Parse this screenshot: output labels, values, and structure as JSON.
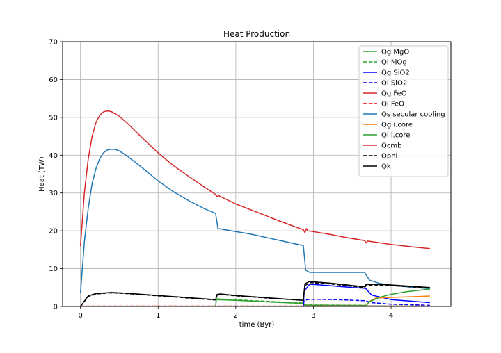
{
  "chart_data": {
    "type": "line",
    "title": "Heat Production",
    "xlabel": "time (Byr)",
    "ylabel": "Heat (TW)",
    "xlim": [
      -0.23,
      4.77
    ],
    "ylim": [
      0,
      70
    ],
    "x_ticks": [
      0,
      1,
      2,
      3,
      4
    ],
    "y_ticks": [
      0,
      10,
      20,
      30,
      40,
      50,
      60,
      70
    ],
    "x_tick_labels": [
      "0",
      "1",
      "2",
      "3",
      "4"
    ],
    "y_tick_labels": [
      "0",
      "10",
      "20",
      "30",
      "40",
      "50",
      "60",
      "70"
    ],
    "grid": true,
    "legend_position": "top-right",
    "series": [
      {
        "name": "Qg MgO",
        "color": "#2ca02c",
        "dash": "solid",
        "points": [
          [
            0,
            0
          ],
          [
            1.74,
            0
          ],
          [
            1.75,
            1.8
          ],
          [
            2.0,
            1.6
          ],
          [
            2.5,
            1.1
          ],
          [
            2.87,
            0.8
          ],
          [
            2.88,
            0.35
          ],
          [
            3.2,
            0.3
          ],
          [
            3.67,
            0.25
          ],
          [
            3.7,
            0.1
          ],
          [
            4.0,
            0.1
          ],
          [
            4.5,
            0.05
          ]
        ]
      },
      {
        "name": "Ql MOg",
        "color": "#2ca02c",
        "dash": "dashed",
        "points": [
          [
            0,
            0
          ],
          [
            1.74,
            0
          ],
          [
            1.75,
            2.0
          ],
          [
            2.0,
            1.75
          ],
          [
            2.5,
            1.25
          ],
          [
            2.87,
            0.9
          ],
          [
            2.88,
            0.4
          ],
          [
            3.2,
            0.35
          ],
          [
            3.67,
            0.3
          ],
          [
            3.7,
            0.15
          ],
          [
            4.0,
            0.1
          ],
          [
            4.5,
            0.05
          ]
        ]
      },
      {
        "name": "Qg SiO2",
        "color": "#0000ff",
        "dash": "solid",
        "points": [
          [
            0,
            0
          ],
          [
            2.87,
            0
          ],
          [
            2.88,
            4.0
          ],
          [
            2.95,
            5.9
          ],
          [
            3.2,
            5.5
          ],
          [
            3.5,
            5.0
          ],
          [
            3.67,
            4.8
          ],
          [
            3.75,
            3.0
          ],
          [
            4.0,
            1.8
          ],
          [
            4.5,
            1.0
          ]
        ]
      },
      {
        "name": "Ql SiO2",
        "color": "#0000ff",
        "dash": "dashed",
        "points": [
          [
            0,
            0
          ],
          [
            2.87,
            0
          ],
          [
            2.88,
            1.6
          ],
          [
            2.95,
            1.9
          ],
          [
            3.3,
            1.8
          ],
          [
            3.67,
            1.5
          ],
          [
            3.75,
            1.0
          ],
          [
            4.0,
            0.6
          ],
          [
            4.5,
            0.3
          ]
        ]
      },
      {
        "name": "Qg FeO",
        "color": "#d62728",
        "dash": "solid",
        "points": [
          [
            0,
            0.05
          ],
          [
            4.5,
            0.05
          ]
        ]
      },
      {
        "name": "Ql FeO",
        "color": "#ff0000",
        "dash": "dashed",
        "points": [
          [
            0,
            0.1
          ],
          [
            4.5,
            0.1
          ]
        ]
      },
      {
        "name": "Qs secular cooling",
        "color": "#1f77b4",
        "dash": "solid",
        "points": [
          [
            0,
            3.5
          ],
          [
            0.05,
            17
          ],
          [
            0.1,
            26
          ],
          [
            0.15,
            32.5
          ],
          [
            0.2,
            36.5
          ],
          [
            0.25,
            39.2
          ],
          [
            0.3,
            40.7
          ],
          [
            0.35,
            41.4
          ],
          [
            0.4,
            41.6
          ],
          [
            0.45,
            41.5
          ],
          [
            0.5,
            41.1
          ],
          [
            0.6,
            39.8
          ],
          [
            0.7,
            38.2
          ],
          [
            0.8,
            36.6
          ],
          [
            1.0,
            33.2
          ],
          [
            1.2,
            30.3
          ],
          [
            1.4,
            27.9
          ],
          [
            1.6,
            25.8
          ],
          [
            1.74,
            24.6
          ],
          [
            1.77,
            20.6
          ],
          [
            2.0,
            19.8
          ],
          [
            2.2,
            19.1
          ],
          [
            2.4,
            18.2
          ],
          [
            2.6,
            17.3
          ],
          [
            2.87,
            16.1
          ],
          [
            2.9,
            9.6
          ],
          [
            2.95,
            9.0
          ],
          [
            3.2,
            9.0
          ],
          [
            3.66,
            9.0
          ],
          [
            3.72,
            7.0
          ],
          [
            3.85,
            6.1
          ],
          [
            4.0,
            5.6
          ],
          [
            4.3,
            5.0
          ],
          [
            4.5,
            4.7
          ]
        ]
      },
      {
        "name": "Qg i.core",
        "color": "#ff7f0e",
        "dash": "solid",
        "points": [
          [
            0,
            0
          ],
          [
            3.67,
            0
          ],
          [
            3.72,
            1.3
          ],
          [
            3.8,
            2.2
          ],
          [
            4.0,
            2.4
          ],
          [
            4.3,
            2.6
          ],
          [
            4.5,
            2.75
          ]
        ]
      },
      {
        "name": "Ql i.core",
        "color": "#2ca02c",
        "dash": "solid",
        "points": [
          [
            0,
            0
          ],
          [
            3.67,
            0
          ],
          [
            3.72,
            1.2
          ],
          [
            3.85,
            2.4
          ],
          [
            4.0,
            3.2
          ],
          [
            4.2,
            3.9
          ],
          [
            4.5,
            4.6
          ]
        ]
      },
      {
        "name": "Qcmb",
        "color": "#d62728",
        "dash": "solid",
        "points": [
          [
            0,
            16
          ],
          [
            0.05,
            30
          ],
          [
            0.1,
            39
          ],
          [
            0.15,
            45
          ],
          [
            0.2,
            48.7
          ],
          [
            0.25,
            50.6
          ],
          [
            0.3,
            51.5
          ],
          [
            0.35,
            51.7
          ],
          [
            0.4,
            51.5
          ],
          [
            0.5,
            50.3
          ],
          [
            0.6,
            48.5
          ],
          [
            0.8,
            44.5
          ],
          [
            1.0,
            40.6
          ],
          [
            1.2,
            37.2
          ],
          [
            1.4,
            34.3
          ],
          [
            1.6,
            31.5
          ],
          [
            1.74,
            29.6
          ],
          [
            1.76,
            29.0
          ],
          [
            1.78,
            29.3
          ],
          [
            2.0,
            27.1
          ],
          [
            2.2,
            25.5
          ],
          [
            2.4,
            23.9
          ],
          [
            2.6,
            22.3
          ],
          [
            2.8,
            20.8
          ],
          [
            2.87,
            20.3
          ],
          [
            2.89,
            19.5
          ],
          [
            2.91,
            20.6
          ],
          [
            2.93,
            20.0
          ],
          [
            3.2,
            19.1
          ],
          [
            3.4,
            18.3
          ],
          [
            3.66,
            17.4
          ],
          [
            3.68,
            16.8
          ],
          [
            3.7,
            17.3
          ],
          [
            4.0,
            16.4
          ],
          [
            4.3,
            15.7
          ],
          [
            4.5,
            15.3
          ]
        ]
      },
      {
        "name": "Qphi",
        "color": "#000000",
        "dash": "dashed",
        "points": [
          [
            0,
            0
          ],
          [
            0.1,
            2.6
          ],
          [
            0.2,
            3.3
          ],
          [
            0.4,
            3.6
          ],
          [
            0.6,
            3.4
          ],
          [
            1.0,
            2.8
          ],
          [
            1.4,
            2.2
          ],
          [
            1.74,
            1.7
          ],
          [
            1.76,
            3.0
          ],
          [
            1.8,
            3.2
          ],
          [
            2.0,
            2.8
          ],
          [
            2.4,
            2.2
          ],
          [
            2.87,
            1.6
          ],
          [
            2.89,
            5.5
          ],
          [
            2.95,
            6.3
          ],
          [
            3.2,
            6.0
          ],
          [
            3.66,
            5.0
          ],
          [
            3.68,
            5.6
          ],
          [
            3.8,
            5.7
          ],
          [
            4.0,
            5.5
          ],
          [
            4.5,
            4.9
          ]
        ]
      },
      {
        "name": "Qk",
        "color": "#000000",
        "dash": "solid",
        "points": [
          [
            0,
            0
          ],
          [
            0.1,
            2.8
          ],
          [
            0.2,
            3.4
          ],
          [
            0.4,
            3.7
          ],
          [
            0.6,
            3.5
          ],
          [
            1.0,
            2.9
          ],
          [
            1.4,
            2.3
          ],
          [
            1.74,
            1.8
          ],
          [
            1.76,
            3.2
          ],
          [
            1.8,
            3.3
          ],
          [
            2.0,
            2.9
          ],
          [
            2.4,
            2.3
          ],
          [
            2.87,
            1.6
          ],
          [
            2.89,
            6.0
          ],
          [
            2.95,
            6.6
          ],
          [
            3.2,
            6.2
          ],
          [
            3.66,
            5.2
          ],
          [
            3.68,
            5.8
          ],
          [
            3.8,
            5.9
          ],
          [
            4.0,
            5.7
          ],
          [
            4.5,
            5.0
          ]
        ]
      }
    ]
  }
}
